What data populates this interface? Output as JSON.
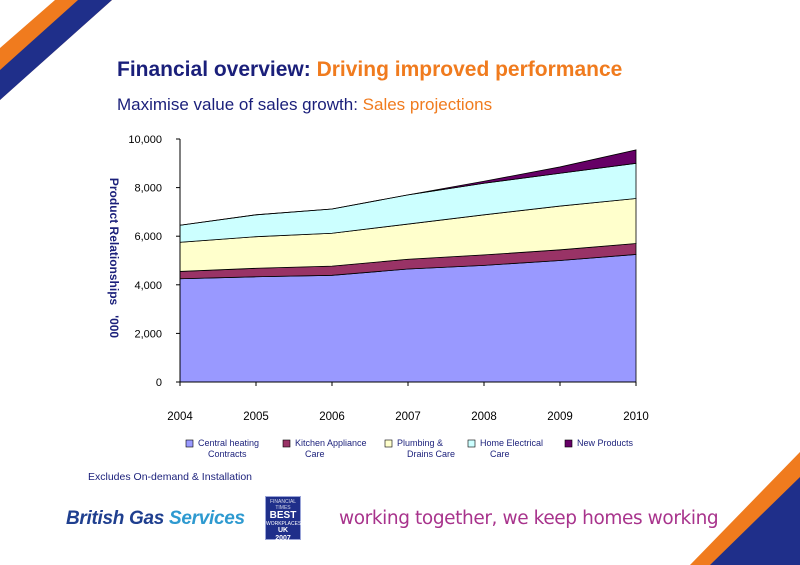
{
  "header": {
    "title_main": "Financial overview: ",
    "title_accent": "Driving improved performance",
    "subtitle_main": "Maximise value of sales growth: ",
    "subtitle_accent": "Sales projections"
  },
  "colors": {
    "navy": "#1a1f7a",
    "orange": "#f07b1e",
    "magenta": "#a8338c"
  },
  "chart_data": {
    "type": "area",
    "stacked": true,
    "x": [
      "2004",
      "2005",
      "2006",
      "2007",
      "2008",
      "2009",
      "2010"
    ],
    "ylabel": "Product Relationships   '000",
    "ylim": [
      0,
      10000
    ],
    "y_ticks": [
      "0",
      "2,000",
      "4,000",
      "6,000",
      "8,000",
      "10,000"
    ],
    "grid": false,
    "legend_position": "bottom",
    "series": [
      {
        "name": "Central heating Contracts",
        "label_lines": [
          "Central heating",
          "Contracts"
        ],
        "color": "#9999ff",
        "values": [
          4250,
          4330,
          4390,
          4650,
          4800,
          5000,
          5250
        ]
      },
      {
        "name": "Kitchen Appliance Care",
        "label_lines": [
          "Kitchen Appliance",
          "Care"
        ],
        "color": "#993366",
        "values": [
          300,
          350,
          380,
          400,
          430,
          440,
          450
        ]
      },
      {
        "name": "Plumbing & Drains Care",
        "label_lines": [
          "Plumbing &",
          "Drains Care"
        ],
        "color": "#ffffcc",
        "values": [
          1200,
          1300,
          1350,
          1450,
          1650,
          1800,
          1850
        ]
      },
      {
        "name": "Home Electrical Care",
        "label_lines": [
          "Home Electrical",
          "Care"
        ],
        "color": "#ccffff",
        "values": [
          700,
          900,
          1000,
          1200,
          1300,
          1350,
          1450
        ]
      },
      {
        "name": "New Products",
        "label_lines": [
          "New Products"
        ],
        "color": "#660066",
        "values": [
          0,
          0,
          0,
          0,
          80,
          260,
          550
        ]
      }
    ]
  },
  "footnote": "Excludes On-demand & Installation",
  "footer": {
    "brand_main": "British Gas ",
    "brand_accent": "Services",
    "badge_line1": "FINANCIAL TIMES",
    "badge_line2": "BEST",
    "badge_line3": "WORKPLACES",
    "badge_line4": "UK",
    "badge_line5": "2007",
    "tagline": "working together, we keep homes working"
  }
}
